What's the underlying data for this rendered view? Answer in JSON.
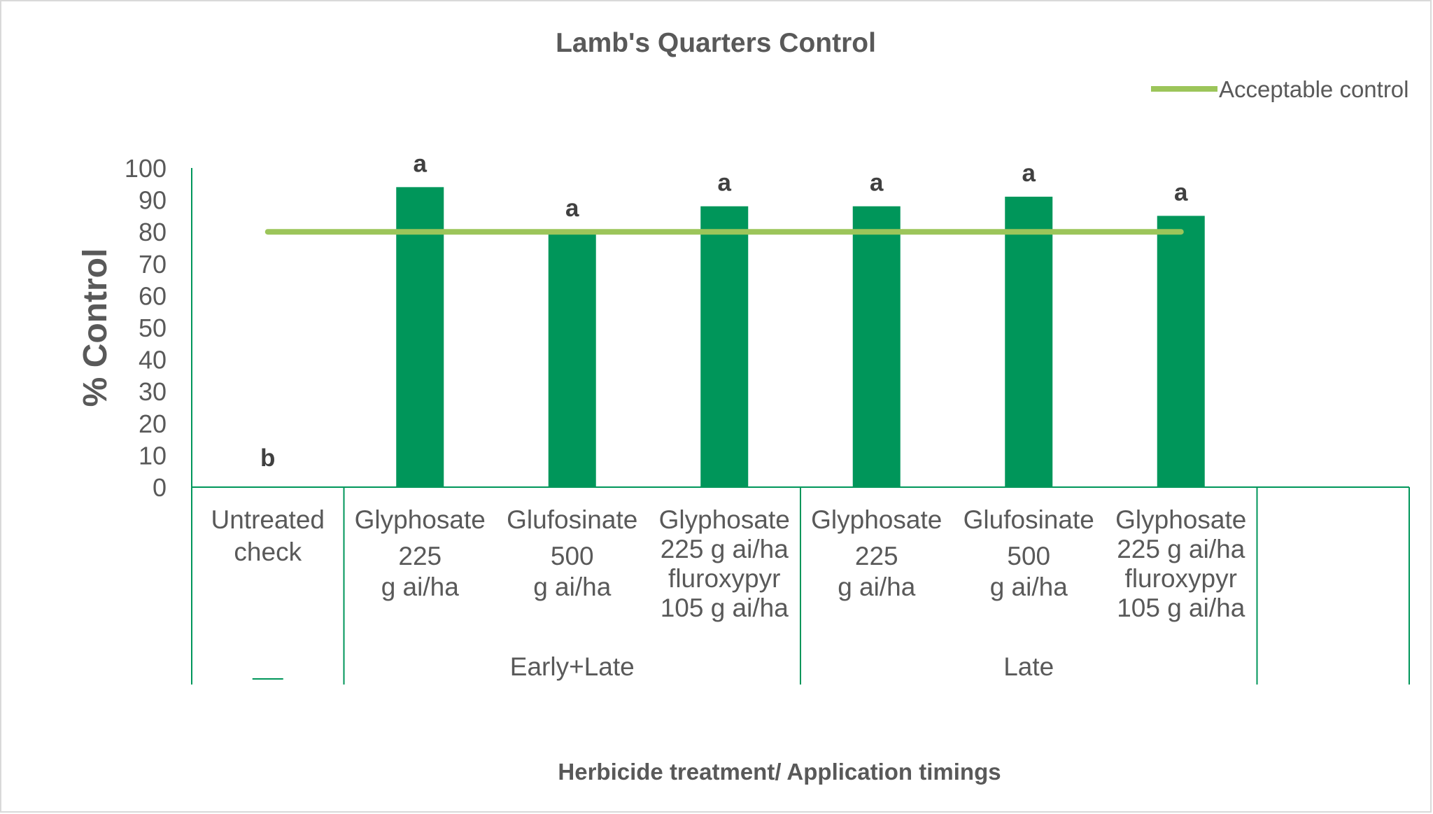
{
  "chart_data": {
    "type": "bar",
    "title": "Lamb's Quarters Control",
    "xlabel": "Herbicide treatment/ Application timings",
    "ylabel": "% Control",
    "ylim": [
      0,
      100
    ],
    "yticks": [
      "0",
      "10",
      "20",
      "30",
      "40",
      "50",
      "60",
      "70",
      "80",
      "90",
      "100"
    ],
    "grid": false,
    "legend_position": "top-right",
    "categories": [
      [
        "Untreated",
        "check"
      ],
      [
        "Glyphosate",
        "225",
        "g ai/ha"
      ],
      [
        "Glufosinate",
        "500",
        "g ai/ha"
      ],
      [
        "Glyphosate",
        "225 g ai/ha",
        "fluroxypyr",
        "105 g ai/ha"
      ],
      [
        "Glyphosate",
        "225",
        "g ai/ha"
      ],
      [
        "Glufosinate",
        "500",
        "g ai/ha"
      ],
      [
        "Glyphosate",
        "225 g ai/ha",
        "fluroxypyr",
        "105 g ai/ha"
      ]
    ],
    "groups": [
      {
        "label": "—",
        "count": 1
      },
      {
        "label": "Early+Late",
        "count": 3
      },
      {
        "label": "Late",
        "count": 3
      }
    ],
    "values": [
      0,
      94,
      80,
      88,
      88,
      91,
      85
    ],
    "significance_letters": [
      "b",
      "a",
      "a",
      "a",
      "a",
      "a",
      "a"
    ],
    "reference_line": {
      "label": "Acceptable control",
      "value": 80
    },
    "colors": {
      "bar": "#00965A",
      "reference_line": "#9CC55A",
      "axis": "#00965A",
      "text": "#595959"
    }
  }
}
